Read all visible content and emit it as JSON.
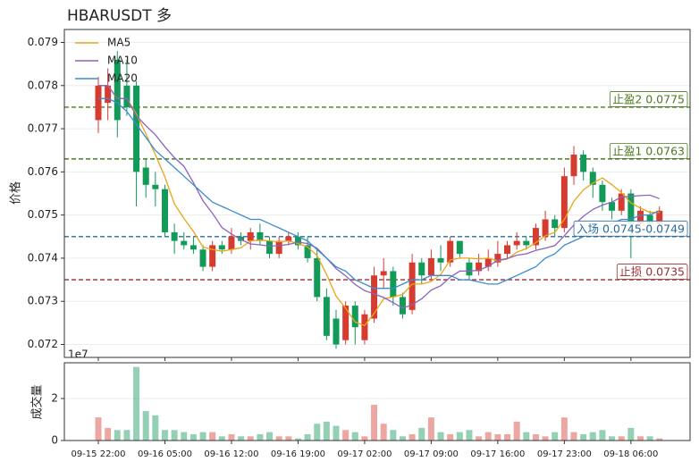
{
  "chart_data": {
    "type": "candlestick",
    "title": "HBARUSDT 多",
    "ylabel": "价格",
    "categories": [
      "09-15 22:00",
      null,
      null,
      null,
      null,
      null,
      null,
      "09-16 05:00",
      null,
      null,
      null,
      null,
      null,
      null,
      "09-16 12:00",
      null,
      null,
      null,
      null,
      null,
      null,
      "09-16 19:00",
      null,
      null,
      null,
      null,
      null,
      null,
      "09-17 02:00",
      null,
      null,
      null,
      null,
      null,
      null,
      "09-17 09:00",
      null,
      null,
      null,
      null,
      null,
      null,
      "09-17 16:00",
      null,
      null,
      null,
      null,
      null,
      null,
      "09-17 23:00",
      null,
      null,
      null,
      null,
      null,
      null,
      "09-18 06:00",
      null,
      null,
      null
    ],
    "open": [
      0.0772,
      0.0776,
      0.0786,
      0.078,
      0.078,
      0.0761,
      0.0757,
      0.0756,
      0.0746,
      0.0744,
      0.0743,
      0.0742,
      0.0738,
      0.0743,
      0.0742,
      0.0745,
      0.0744,
      0.0746,
      0.0744,
      0.0741,
      0.0744,
      0.0745,
      0.0743,
      0.074,
      0.0731,
      0.0726,
      0.0721,
      0.0729,
      0.0721,
      0.0726,
      0.0736,
      0.0737,
      0.0731,
      0.0728,
      0.0739,
      0.0736,
      0.074,
      0.0739,
      0.0744,
      0.0739,
      0.0737,
      0.0738,
      0.0739,
      0.0741,
      0.0743,
      0.0744,
      0.0743,
      0.0745,
      0.0749,
      0.0747,
      0.0759,
      0.0764,
      0.076,
      0.0757,
      0.0753,
      0.0751,
      0.0755,
      0.0748,
      0.075,
      0.0748
    ],
    "high": [
      0.0782,
      0.0784,
      0.0788,
      0.0786,
      0.0781,
      0.0763,
      0.076,
      0.0757,
      0.0748,
      0.0746,
      0.0745,
      0.0743,
      0.0744,
      0.0744,
      0.0747,
      0.0746,
      0.0747,
      0.0748,
      0.0745,
      0.0745,
      0.0746,
      0.0746,
      0.0745,
      0.0742,
      0.0733,
      0.0728,
      0.073,
      0.073,
      0.0728,
      0.0738,
      0.074,
      0.0738,
      0.0732,
      0.0741,
      0.074,
      0.0742,
      0.0743,
      0.0745,
      0.0744,
      0.074,
      0.0741,
      0.0742,
      0.0744,
      0.0744,
      0.0746,
      0.0745,
      0.0748,
      0.0751,
      0.075,
      0.0761,
      0.0766,
      0.0765,
      0.0761,
      0.0758,
      0.0754,
      0.0756,
      0.0756,
      0.0752,
      0.0751,
      0.0752
    ],
    "low": [
      0.0769,
      0.0772,
      0.0768,
      0.0773,
      0.0752,
      0.0754,
      0.0752,
      0.0745,
      0.0741,
      0.0742,
      0.0741,
      0.0737,
      0.0737,
      0.0741,
      0.0741,
      0.0743,
      0.0742,
      0.0743,
      0.074,
      0.074,
      0.0743,
      0.0742,
      0.0739,
      0.073,
      0.0721,
      0.0719,
      0.072,
      0.072,
      0.072,
      0.0725,
      0.0733,
      0.0729,
      0.0726,
      0.0727,
      0.0734,
      0.0735,
      0.0737,
      0.0738,
      0.074,
      0.0735,
      0.0736,
      0.0737,
      0.0738,
      0.074,
      0.0742,
      0.0742,
      0.0742,
      0.0744,
      0.0745,
      0.0746,
      0.0757,
      0.0758,
      0.0754,
      0.0751,
      0.0749,
      0.075,
      0.074,
      0.0746,
      0.0745,
      0.0747
    ],
    "close": [
      0.078,
      0.078,
      0.0772,
      0.0775,
      0.076,
      0.0757,
      0.0756,
      0.0746,
      0.0744,
      0.0743,
      0.0742,
      0.0738,
      0.0743,
      0.0742,
      0.0745,
      0.0744,
      0.0746,
      0.0744,
      0.0741,
      0.0744,
      0.0745,
      0.0743,
      0.074,
      0.0731,
      0.0722,
      0.072,
      0.0729,
      0.0724,
      0.0727,
      0.0736,
      0.0737,
      0.0731,
      0.0727,
      0.0739,
      0.0736,
      0.074,
      0.0739,
      0.0744,
      0.0741,
      0.0736,
      0.0739,
      0.074,
      0.0741,
      0.0743,
      0.0744,
      0.0743,
      0.0747,
      0.0749,
      0.0747,
      0.0759,
      0.0764,
      0.076,
      0.0757,
      0.0753,
      0.0751,
      0.0755,
      0.0748,
      0.0751,
      0.0748,
      0.0751
    ],
    "up_color": "#d63b30",
    "down_color": "#119a58",
    "series": [
      {
        "name": "MA5",
        "color": "#eaa514",
        "values": [
          0.078,
          0.078,
          0.0777,
          0.0777,
          0.07734,
          0.07688,
          0.0764,
          0.07588,
          0.07526,
          0.07492,
          0.07462,
          0.07426,
          0.0742,
          0.07416,
          0.0742,
          0.07424,
          0.0744,
          0.07442,
          0.0744,
          0.07438,
          0.0744,
          0.07434,
          0.07426,
          0.07406,
          0.07362,
          0.07312,
          0.07284,
          0.07252,
          0.07244,
          0.07272,
          0.07306,
          0.0731,
          0.07316,
          0.0734,
          0.0734,
          0.07346,
          0.07362,
          0.07396,
          0.074,
          0.074,
          0.07398,
          0.074,
          0.07394,
          0.07398,
          0.07414,
          0.07422,
          0.07436,
          0.07452,
          0.0746,
          0.0749,
          0.07532,
          0.07558,
          0.07574,
          0.07586,
          0.0757,
          0.07552,
          0.07528,
          0.07516,
          0.07506,
          0.07506
        ]
      },
      {
        "name": "MA10",
        "color": "#8a63bd",
        "values": [
          0.078,
          0.078,
          0.0777,
          0.0777,
          0.0773,
          0.07707,
          0.07686,
          0.07658,
          0.07633,
          0.07613,
          0.07575,
          0.07533,
          0.07504,
          0.07471,
          0.07456,
          0.07443,
          0.07433,
          0.07431,
          0.07428,
          0.07429,
          0.07432,
          0.07437,
          0.07434,
          0.07423,
          0.074,
          0.07376,
          0.07359,
          0.07339,
          0.07325,
          0.07317,
          0.07309,
          0.07297,
          0.07284,
          0.07292,
          0.07306,
          0.07326,
          0.07336,
          0.07356,
          0.0737,
          0.0737,
          0.07372,
          0.07381,
          0.07395,
          0.07399,
          0.07407,
          0.0741,
          0.07418,
          0.07423,
          0.07429,
          0.07452,
          0.07477,
          0.07497,
          0.07513,
          0.07523,
          0.0753,
          0.07542,
          0.07543,
          0.07545,
          0.07546,
          0.07538
        ]
      },
      {
        "name": "MA20",
        "color": "#3d8bcd",
        "values": [
          0.0777,
          0.0777,
          0.0776,
          0.0774,
          0.0771,
          0.0768,
          0.0765,
          0.0763,
          0.0761,
          0.0759,
          0.0757,
          0.0755,
          0.0753,
          0.0752,
          0.0751,
          0.075,
          0.0749,
          0.0749,
          0.0748,
          0.0747,
          0.0746,
          0.0745,
          0.0744,
          0.0742,
          0.074,
          0.0738,
          0.0737,
          0.0735,
          0.0734,
          0.0733,
          0.0733,
          0.0733,
          0.0734,
          0.0735,
          0.0735,
          0.0736,
          0.0736,
          0.0736,
          0.0735,
          0.0735,
          0.07345,
          0.0734,
          0.0734,
          0.0735,
          0.0736,
          0.0737,
          0.0738,
          0.074,
          0.0741,
          0.0743,
          0.0744,
          0.0745,
          0.0746,
          0.0747,
          0.0748,
          0.0749,
          0.0749,
          0.075,
          0.075,
          0.0751
        ]
      }
    ],
    "hlines": [
      {
        "label": "止盈2 0.0775",
        "value": 0.0775,
        "color": "#4b7a1e"
      },
      {
        "label": "止盈1 0.0763",
        "value": 0.0763,
        "color": "#4b7a1e"
      },
      {
        "label": "入场 0.0745-0.0749",
        "value": 0.0745,
        "color": "#2a6b9c"
      },
      {
        "label": "止损 0.0735",
        "value": 0.0735,
        "color": "#9a2e2e"
      }
    ],
    "ylim": [
      0.0717,
      0.0793
    ],
    "yticks": [
      0.072,
      0.073,
      0.074,
      0.075,
      0.076,
      0.077,
      0.078,
      0.079
    ],
    "grid": true,
    "legend": "upper left",
    "volume": {
      "ylabel": "成交量",
      "offset_label": "1e7",
      "values": [
        1.1,
        0.6,
        0.5,
        0.5,
        3.5,
        1.4,
        1.2,
        0.5,
        0.5,
        0.4,
        0.3,
        0.4,
        0.4,
        0.2,
        0.3,
        0.2,
        0.2,
        0.3,
        0.4,
        0.2,
        0.2,
        0.1,
        0.3,
        0.8,
        0.9,
        0.7,
        0.5,
        0.4,
        0.2,
        1.7,
        0.8,
        0.5,
        0.2,
        0.3,
        0.6,
        1.1,
        0.4,
        0.3,
        0.4,
        0.5,
        0.2,
        0.4,
        0.3,
        0.3,
        0.9,
        0.4,
        0.3,
        0.2,
        0.4,
        1.1,
        0.4,
        0.3,
        0.4,
        0.5,
        0.2,
        0.2,
        0.6,
        0.2,
        0.2,
        0.1
      ],
      "ylim": [
        0,
        3.7
      ],
      "yticks": [
        0,
        2
      ],
      "opacity": 0.45
    }
  }
}
